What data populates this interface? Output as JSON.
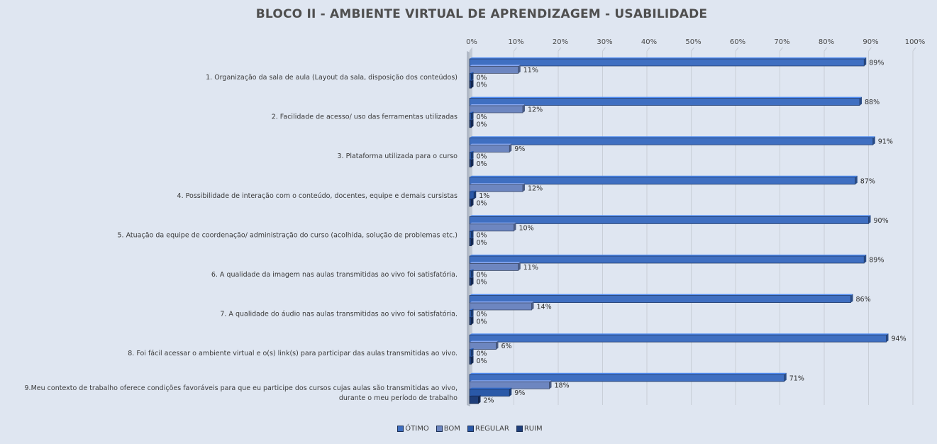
{
  "chart_data": {
    "type": "bar",
    "orientation": "horizontal",
    "title": "BLOCO II - AMBIENTE VIRTUAL DE APRENDIZAGEM - USABILIDADE",
    "xlim": [
      0,
      100
    ],
    "x_ticks": [
      "0%",
      "10%",
      "20%",
      "30%",
      "40%",
      "50%",
      "60%",
      "70%",
      "80%",
      "90%",
      "100%"
    ],
    "x_axis_position": "top",
    "grid": true,
    "legend_position": "bottom",
    "categories": [
      [
        "1. Organização da sala de aula (Layout da sala, disposição dos conteúdos)"
      ],
      [
        "2. Facilidade de acesso/ uso das ferramentas utilizadas"
      ],
      [
        "3. Plataforma utilizada para o curso"
      ],
      [
        "4. Possibilidade de interação com o conteúdo, docentes, equipe e demais cursistas"
      ],
      [
        "5. Atuação da equipe de coordenação/ administração do curso (acolhida, solução de problemas etc.)"
      ],
      [
        "6. A qualidade da imagem nas aulas transmitidas ao vivo foi satisfatória."
      ],
      [
        "7. A qualidade do áudio nas aulas transmitidas ao vivo foi satisfatória."
      ],
      [
        "8. Foi fácil acessar o ambiente virtual e o(s) link(s) para participar das aulas transmitidas ao vivo."
      ],
      [
        "9.Meu contexto de trabalho oferece condições favoráveis para que eu participe dos cursos cujas aulas são transmitidas ao vivo,",
        "durante o meu período de trabalho"
      ]
    ],
    "series": [
      {
        "name": "ÓTIMO",
        "color": "#3f6fc1",
        "values": [
          89,
          88,
          91,
          87,
          90,
          89,
          86,
          94,
          71
        ]
      },
      {
        "name": "BOM",
        "color": "#6d86c0",
        "values": [
          11,
          12,
          9,
          12,
          10,
          11,
          14,
          6,
          18
        ]
      },
      {
        "name": "REGULAR",
        "color": "#2a59a8",
        "values": [
          0,
          0,
          0,
          1,
          0,
          0,
          0,
          0,
          9
        ]
      },
      {
        "name": "RUIM",
        "color": "#1f3e7a",
        "values": [
          0,
          0,
          0,
          0,
          0,
          0,
          0,
          0,
          2
        ]
      }
    ]
  }
}
